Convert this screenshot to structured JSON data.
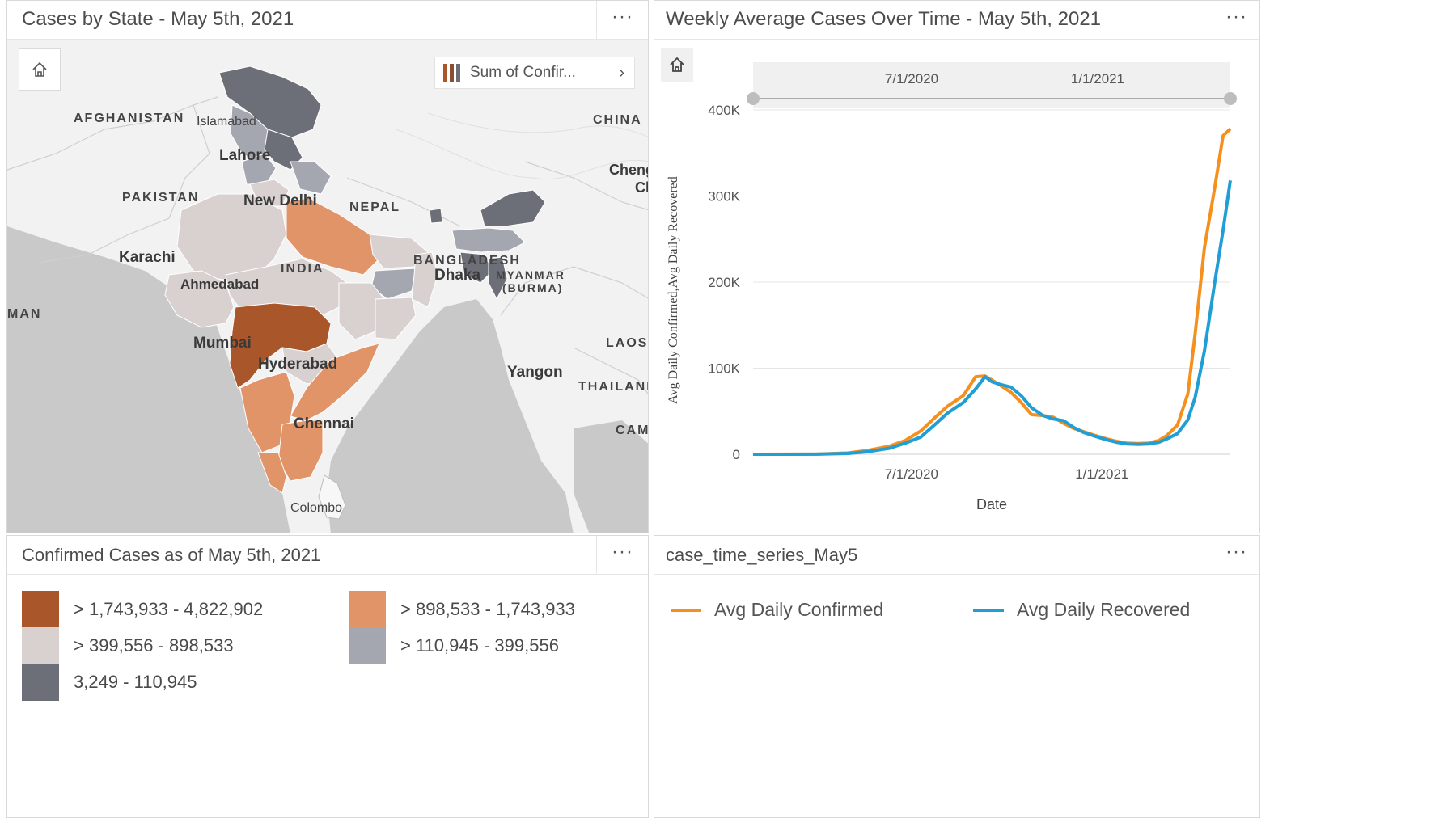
{
  "map_card": {
    "title": "Cases by State - May 5th, 2021",
    "menu": "···",
    "layer_button": "Sum of Confir...",
    "labels": {
      "afghanistan": "AFGHANISTAN",
      "pakistan": "PAKISTAN",
      "china": "CHINA",
      "nepal": "NEPAL",
      "india": "INDIA",
      "bangladesh": "BANGLADESH",
      "myanmar1": "MYANMAR",
      "myanmar2": "(BURMA)",
      "laos": "LAOS",
      "thailand": "THAILAND",
      "cambodia": "CAMI",
      "oman": "MAN",
      "islamabad": "Islamabad",
      "lahore": "Lahore",
      "new_delhi": "New Delhi",
      "karachi": "Karachi",
      "ahmedabad": "Ahmedabad",
      "mumbai": "Mumbai",
      "hyderabad": "Hyderabad",
      "chennai": "Chennai",
      "dhaka": "Dhaka",
      "yangon": "Yangon",
      "colombo": "Colombo",
      "cheng1": "Cheng",
      "cheng2": "Cl"
    }
  },
  "chart_card": {
    "title": "Weekly Average Cases Over Time - May 5th, 2021",
    "menu": "···",
    "slider_labels": [
      "7/1/2020",
      "1/1/2021"
    ]
  },
  "legend_card": {
    "title": "Confirmed Cases as of May 5th, 2021",
    "menu": "···",
    "items": [
      {
        "label": "> 1,743,933 - 4,822,902",
        "color": "#a9562b"
      },
      {
        "label": "> 898,533 - 1,743,933",
        "color": "#e09468"
      },
      {
        "label": "> 399,556 - 898,533",
        "color": "#d9d1d0"
      },
      {
        "label": "> 110,945 - 399,556",
        "color": "#a4a7b0"
      },
      {
        "label": "3,249 - 110,945",
        "color": "#6c6f78"
      }
    ]
  },
  "series_card": {
    "title": "case_time_series_May5",
    "menu": "···",
    "items": [
      {
        "label": "Avg Daily Confirmed",
        "color": "#f5901e"
      },
      {
        "label": "Avg Daily Recovered",
        "color": "#1f9fd5"
      }
    ]
  },
  "chart_data": {
    "type": "line",
    "title": "Weekly Average Cases Over Time - May 5th, 2021",
    "xlabel": "Date",
    "ylabel": "Avg Daily Confirmed,Avg Daily Recovered",
    "x_ticks": [
      "7/1/2020",
      "1/1/2021"
    ],
    "y_ticks": [
      "0",
      "100K",
      "200K",
      "300K",
      "400K"
    ],
    "xlim": [
      "2020-01-30",
      "2021-05-05"
    ],
    "ylim": [
      0,
      400000
    ],
    "grid": true,
    "legend": "bottom panel",
    "x": [
      "2020-01-30",
      "2020-03-01",
      "2020-04-01",
      "2020-05-01",
      "2020-05-20",
      "2020-06-10",
      "2020-06-25",
      "2020-07-10",
      "2020-07-25",
      "2020-08-05",
      "2020-08-20",
      "2020-09-01",
      "2020-09-10",
      "2020-09-17",
      "2020-09-25",
      "2020-10-05",
      "2020-10-15",
      "2020-10-25",
      "2020-11-05",
      "2020-11-15",
      "2020-11-25",
      "2020-12-05",
      "2020-12-15",
      "2020-12-25",
      "2021-01-05",
      "2021-01-15",
      "2021-01-25",
      "2021-02-05",
      "2021-02-15",
      "2021-02-25",
      "2021-03-05",
      "2021-03-15",
      "2021-03-25",
      "2021-04-01",
      "2021-04-10",
      "2021-04-20",
      "2021-04-28",
      "2021-05-05"
    ],
    "series": [
      {
        "name": "Avg Daily Confirmed",
        "color": "#f5901e",
        "values": [
          0,
          50,
          200,
          1500,
          4500,
          9500,
          16000,
          27000,
          44000,
          56000,
          68000,
          90000,
          91000,
          86000,
          80000,
          72000,
          60000,
          46000,
          45000,
          43000,
          36000,
          30000,
          26000,
          22000,
          18000,
          15000,
          13000,
          12500,
          13000,
          16000,
          22000,
          34000,
          70000,
          140000,
          240000,
          310000,
          370000,
          378000
        ]
      },
      {
        "name": "Avg Daily Recovered",
        "color": "#1f9fd5",
        "values": [
          0,
          20,
          100,
          900,
          3000,
          7000,
          13000,
          20000,
          36000,
          48000,
          60000,
          76000,
          90000,
          84000,
          81000,
          78000,
          68000,
          54000,
          45000,
          41000,
          39000,
          31000,
          25000,
          21000,
          17000,
          14000,
          12000,
          11500,
          12000,
          14000,
          18000,
          24000,
          40000,
          66000,
          120000,
          200000,
          260000,
          318000
        ]
      }
    ]
  }
}
